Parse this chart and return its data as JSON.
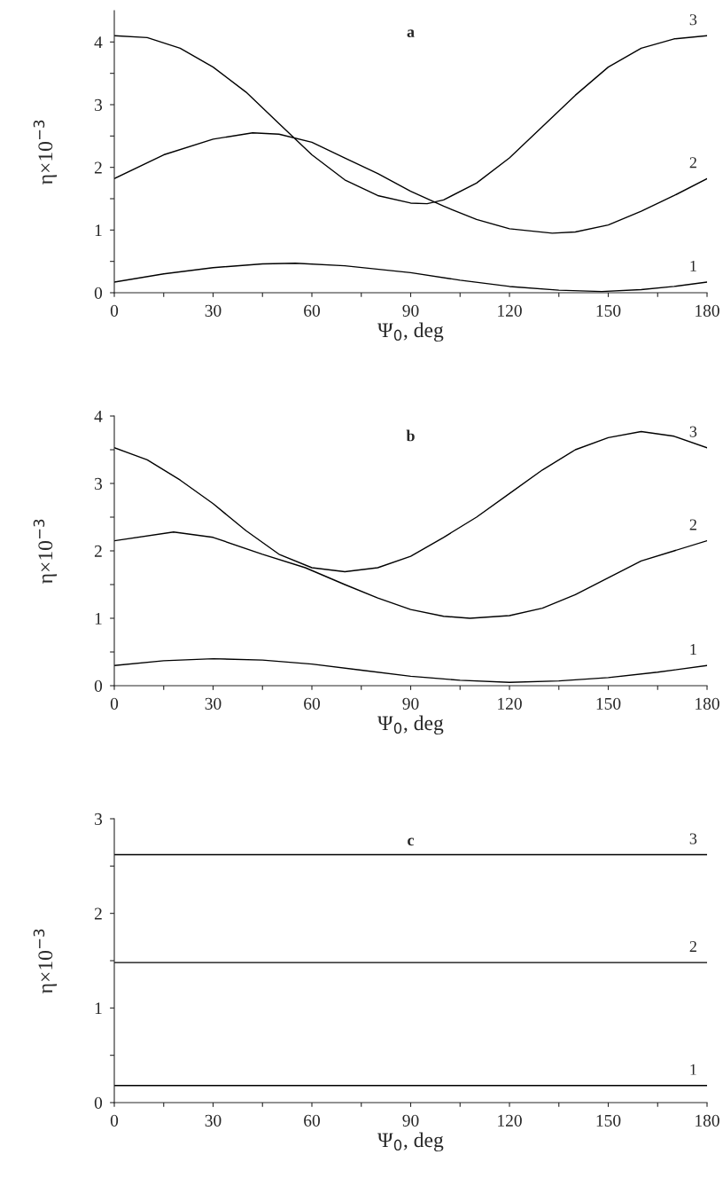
{
  "chart_data": [
    {
      "type": "line",
      "title": "a",
      "xlabel": "Ψ$_{0}$, deg",
      "ylabel": "η×10$^{−3}$",
      "xlim": [
        0,
        180
      ],
      "ylim": [
        0,
        4.5
      ],
      "xticks": [
        0,
        {
          "value": 15,
          "label": null
        },
        30,
        {
          "value": 45,
          "label": null
        },
        60,
        {
          "value": 75,
          "label": null
        },
        90,
        {
          "value": 105,
          "label": null
        },
        120,
        {
          "value": 135,
          "label": null
        },
        150,
        {
          "value": 165,
          "label": null
        },
        180
      ],
      "yticks": [
        0,
        {
          "value": 0.5,
          "label": null
        },
        1,
        {
          "value": 1.5,
          "label": null
        },
        2,
        {
          "value": 2.5,
          "label": null
        },
        3,
        {
          "value": 3.5,
          "label": null
        },
        4
      ],
      "grid": false,
      "legend": false,
      "series": [
        {
          "name": "1",
          "color": "#000000",
          "x": [
            0,
            15,
            30,
            45,
            55,
            70,
            90,
            105,
            120,
            135,
            148,
            160,
            170,
            180
          ],
          "values": [
            0.17,
            0.3,
            0.4,
            0.46,
            0.47,
            0.43,
            0.32,
            0.2,
            0.1,
            0.04,
            0.02,
            0.05,
            0.1,
            0.17
          ]
        },
        {
          "name": "2",
          "color": "#000000",
          "x": [
            0,
            15,
            30,
            42,
            50,
            60,
            70,
            80,
            90,
            100,
            110,
            120,
            133,
            140,
            150,
            160,
            170,
            180
          ],
          "values": [
            1.82,
            2.2,
            2.45,
            2.55,
            2.53,
            2.4,
            2.15,
            1.9,
            1.62,
            1.38,
            1.17,
            1.02,
            0.95,
            0.97,
            1.08,
            1.3,
            1.55,
            1.82
          ]
        },
        {
          "name": "3",
          "color": "#000000",
          "x": [
            0,
            10,
            20,
            30,
            40,
            50,
            60,
            70,
            80,
            90,
            95,
            100,
            110,
            120,
            130,
            140,
            150,
            160,
            170,
            180
          ],
          "values": [
            4.1,
            4.07,
            3.9,
            3.6,
            3.2,
            2.7,
            2.2,
            1.8,
            1.55,
            1.43,
            1.42,
            1.48,
            1.75,
            2.15,
            2.65,
            3.15,
            3.6,
            3.9,
            4.05,
            4.1
          ]
        }
      ]
    },
    {
      "type": "line",
      "title": "b",
      "xlabel": "Ψ$_{0}$, deg",
      "ylabel": "η×10$^{−3}$",
      "xlim": [
        0,
        180
      ],
      "ylim": [
        0,
        4
      ],
      "xticks": [
        0,
        {
          "value": 15,
          "label": null
        },
        30,
        {
          "value": 45,
          "label": null
        },
        60,
        {
          "value": 75,
          "label": null
        },
        90,
        {
          "value": 105,
          "label": null
        },
        120,
        {
          "value": 135,
          "label": null
        },
        150,
        {
          "value": 165,
          "label": null
        },
        180
      ],
      "yticks": [
        0,
        {
          "value": 0.5,
          "label": null
        },
        1,
        {
          "value": 1.5,
          "label": null
        },
        2,
        {
          "value": 2.5,
          "label": null
        },
        3,
        {
          "value": 3.5,
          "label": null
        },
        4
      ],
      "grid": false,
      "legend": false,
      "series": [
        {
          "name": "1",
          "color": "#000000",
          "x": [
            0,
            15,
            30,
            45,
            60,
            75,
            90,
            105,
            120,
            135,
            150,
            165,
            180
          ],
          "values": [
            0.3,
            0.37,
            0.4,
            0.38,
            0.32,
            0.23,
            0.14,
            0.08,
            0.05,
            0.07,
            0.12,
            0.2,
            0.3
          ]
        },
        {
          "name": "2",
          "color": "#000000",
          "x": [
            0,
            18,
            30,
            45,
            58,
            70,
            80,
            90,
            100,
            108,
            120,
            130,
            140,
            150,
            160,
            170,
            180
          ],
          "values": [
            2.15,
            2.28,
            2.2,
            1.95,
            1.75,
            1.5,
            1.3,
            1.13,
            1.03,
            1.0,
            1.04,
            1.15,
            1.35,
            1.6,
            1.85,
            2.0,
            2.15
          ]
        },
        {
          "name": "3",
          "color": "#000000",
          "x": [
            0,
            10,
            20,
            30,
            40,
            50,
            60,
            70,
            80,
            90,
            100,
            110,
            120,
            130,
            140,
            150,
            160,
            170,
            180
          ],
          "values": [
            3.53,
            3.35,
            3.05,
            2.7,
            2.3,
            1.95,
            1.75,
            1.69,
            1.75,
            1.92,
            2.2,
            2.5,
            2.85,
            3.2,
            3.5,
            3.68,
            3.77,
            3.7,
            3.53
          ]
        }
      ]
    },
    {
      "type": "line",
      "title": "c",
      "xlabel": "Ψ$_{0}$, deg",
      "ylabel": "η×10$^{−3}$",
      "xlim": [
        0,
        180
      ],
      "ylim": [
        0,
        3
      ],
      "xticks": [
        0,
        {
          "value": 15,
          "label": null
        },
        30,
        {
          "value": 45,
          "label": null
        },
        60,
        {
          "value": 75,
          "label": null
        },
        90,
        {
          "value": 105,
          "label": null
        },
        120,
        {
          "value": 135,
          "label": null
        },
        150,
        {
          "value": 165,
          "label": null
        },
        180
      ],
      "yticks": [
        0,
        {
          "value": 0.5,
          "label": null
        },
        1,
        {
          "value": 1.5,
          "label": null
        },
        2,
        {
          "value": 2.5,
          "label": null
        },
        3
      ],
      "grid": false,
      "legend": false,
      "series": [
        {
          "name": "1",
          "color": "#000000",
          "x": [
            0,
            180
          ],
          "values": [
            0.18,
            0.18
          ]
        },
        {
          "name": "2",
          "color": "#000000",
          "x": [
            0,
            180
          ],
          "values": [
            1.48,
            1.48
          ]
        },
        {
          "name": "3",
          "color": "#000000",
          "x": [
            0,
            180
          ],
          "values": [
            2.62,
            2.62
          ]
        }
      ]
    }
  ]
}
